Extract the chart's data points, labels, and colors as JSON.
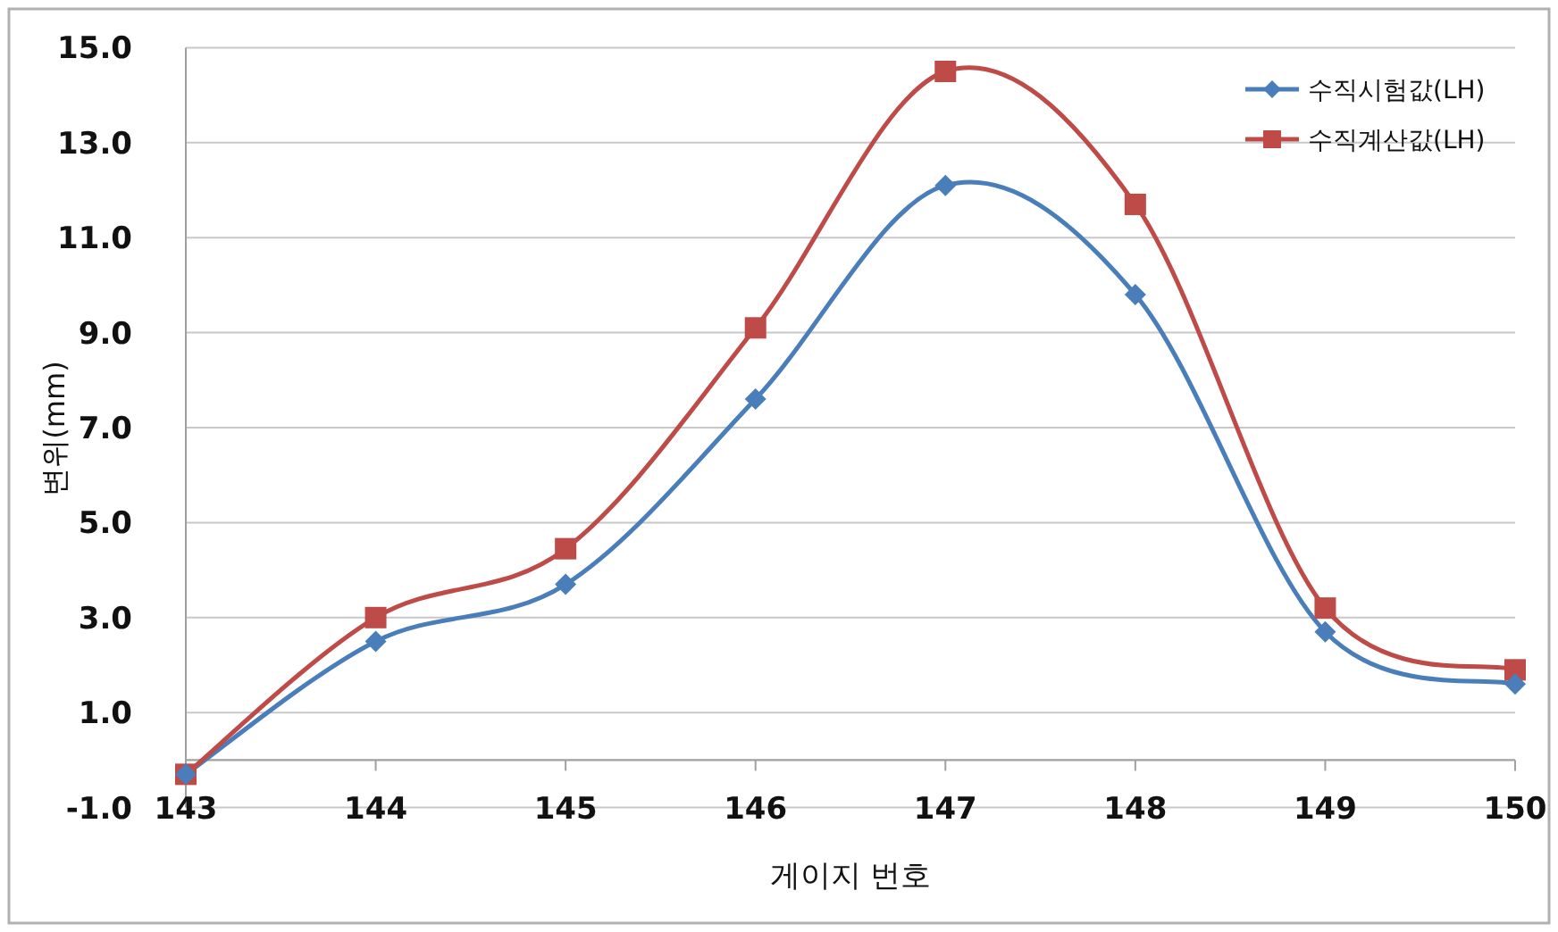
{
  "chart_data": {
    "type": "line",
    "xlabel": "게이지 번호",
    "ylabel": "변위(mm)",
    "categories": [
      "143",
      "144",
      "145",
      "146",
      "147",
      "148",
      "149",
      "150"
    ],
    "series": [
      {
        "name": "수직시험값(LH)",
        "color": "#4a7ebb",
        "marker": "diamond",
        "values": [
          -0.3,
          2.5,
          3.7,
          7.6,
          12.1,
          9.8,
          2.7,
          1.6
        ]
      },
      {
        "name": "수직계산값(LH)",
        "color": "#be4b48",
        "marker": "square",
        "values": [
          -0.3,
          3.0,
          4.45,
          9.1,
          14.5,
          11.7,
          3.2,
          1.9
        ]
      }
    ],
    "ylim": [
      -1.0,
      15.0
    ],
    "yticks": [
      {
        "value": -1,
        "label": "-1.0"
      },
      {
        "value": 1,
        "label": "1.0"
      },
      {
        "value": 3,
        "label": "3.0"
      },
      {
        "value": 5,
        "label": "5.0"
      },
      {
        "value": 7,
        "label": "7.0"
      },
      {
        "value": 9,
        "label": "9.0"
      },
      {
        "value": 11,
        "label": "11.0"
      },
      {
        "value": 13,
        "label": "13.0"
      },
      {
        "value": 15,
        "label": "15.0"
      }
    ],
    "ref_lines": [
      {
        "axis": "y",
        "value": 0,
        "color": "#a0a0a0"
      }
    ],
    "grid": "y",
    "legend": "top right",
    "line_style": "solid"
  }
}
